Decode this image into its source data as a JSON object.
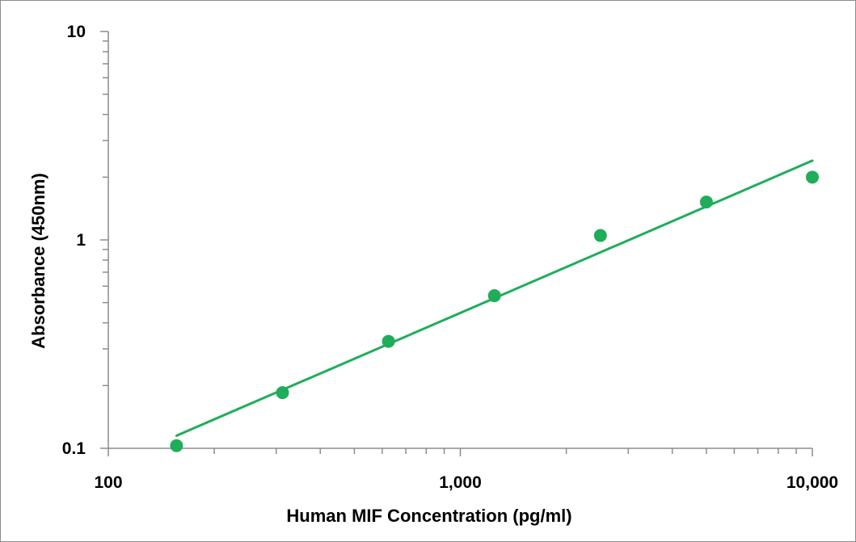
{
  "chart_data": {
    "type": "scatter",
    "title": "",
    "xlabel": "Human MIF Concentration (pg/ml)",
    "ylabel": "Absorbance (450nm)",
    "x_scale": "log",
    "y_scale": "log",
    "xlim": [
      100,
      10000
    ],
    "ylim": [
      0.1,
      10
    ],
    "x_ticks": [
      {
        "value": 100,
        "label": "100"
      },
      {
        "value": 1000,
        "label": "1,000"
      },
      {
        "value": 10000,
        "label": "10,000"
      }
    ],
    "y_ticks": [
      {
        "value": 0.1,
        "label": "0.1"
      },
      {
        "value": 1,
        "label": "1"
      },
      {
        "value": 10,
        "label": "10"
      }
    ],
    "grid": false,
    "legend": "none",
    "color": "#1fad5a",
    "series": [
      {
        "x": [
          156.25,
          312.5,
          625,
          1250,
          2500,
          5000,
          10000
        ],
        "y": [
          0.103,
          0.185,
          0.326,
          0.54,
          1.05,
          1.52,
          2.0
        ]
      }
    ],
    "trendline": {
      "x": [
        156.25,
        10000
      ],
      "y": [
        0.115,
        2.4
      ]
    }
  }
}
